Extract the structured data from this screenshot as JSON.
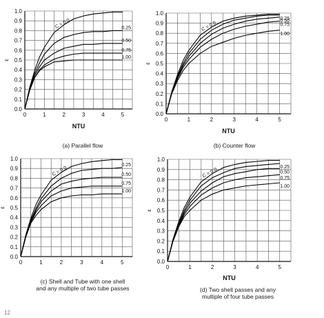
{
  "figure": {
    "footer_mark": "12"
  },
  "chart_data": [
    {
      "type": "line",
      "panel": "a",
      "title": "(a) Parallel flow",
      "xlabel": "NTU",
      "ylabel": "ε",
      "xlim": [
        0,
        5.5
      ],
      "ylim": [
        0,
        1.0
      ],
      "xticks": [
        0,
        1,
        2,
        3,
        4,
        5
      ],
      "yticks": [
        0.0,
        0.1,
        0.2,
        0.3,
        0.4,
        0.5,
        0.6,
        0.7,
        0.8,
        0.9,
        1.0
      ],
      "grid": true,
      "x": [
        0,
        0.25,
        0.5,
        0.75,
        1.0,
        1.5,
        2.0,
        2.5,
        3.0,
        3.5,
        4.0,
        4.5,
        5.0
      ],
      "series": [
        {
          "name": "C = 0.0",
          "values": [
            0,
            0.22,
            0.39,
            0.53,
            0.63,
            0.78,
            0.86,
            0.92,
            0.95,
            0.97,
            0.98,
            0.99,
            0.99
          ]
        },
        {
          "name": "0.25",
          "values": [
            0,
            0.21,
            0.36,
            0.47,
            0.56,
            0.67,
            0.73,
            0.76,
            0.78,
            0.79,
            0.79,
            0.8,
            0.8
          ]
        },
        {
          "name": "0.50",
          "values": [
            0,
            0.2,
            0.34,
            0.43,
            0.5,
            0.57,
            0.62,
            0.64,
            0.66,
            0.66,
            0.67,
            0.67,
            0.67
          ]
        },
        {
          "name": "0.75",
          "values": [
            0,
            0.19,
            0.32,
            0.4,
            0.45,
            0.51,
            0.54,
            0.56,
            0.57,
            0.57,
            0.57,
            0.57,
            0.57
          ]
        },
        {
          "name": "1.00",
          "values": [
            0,
            0.2,
            0.32,
            0.39,
            0.43,
            0.48,
            0.49,
            0.5,
            0.5,
            0.5,
            0.5,
            0.5,
            0.5
          ]
        }
      ]
    },
    {
      "type": "line",
      "panel": "b",
      "title": "(b) Counter flow",
      "xlabel": "NTU",
      "ylabel": "ε",
      "xlim": [
        0,
        5.5
      ],
      "ylim": [
        0,
        1.0
      ],
      "xticks": [
        0,
        1,
        2,
        3,
        4,
        5
      ],
      "yticks": [
        0.0,
        0.1,
        0.2,
        0.3,
        0.4,
        0.5,
        0.6,
        0.7,
        0.8,
        0.9,
        1.0
      ],
      "grid": true,
      "x": [
        0,
        0.25,
        0.5,
        0.75,
        1.0,
        1.5,
        2.0,
        2.5,
        3.0,
        3.5,
        4.0,
        4.5,
        5.0
      ],
      "series": [
        {
          "name": "C = 0.0",
          "values": [
            0,
            0.22,
            0.39,
            0.53,
            0.63,
            0.78,
            0.86,
            0.92,
            0.95,
            0.97,
            0.98,
            0.99,
            0.99
          ]
        },
        {
          "name": "0.25",
          "values": [
            0,
            0.21,
            0.37,
            0.5,
            0.6,
            0.74,
            0.83,
            0.89,
            0.93,
            0.95,
            0.97,
            0.98,
            0.98
          ]
        },
        {
          "name": "0.50",
          "values": [
            0,
            0.21,
            0.36,
            0.48,
            0.57,
            0.7,
            0.79,
            0.85,
            0.89,
            0.92,
            0.94,
            0.95,
            0.96
          ]
        },
        {
          "name": "0.75",
          "values": [
            0,
            0.21,
            0.35,
            0.46,
            0.54,
            0.66,
            0.74,
            0.8,
            0.84,
            0.87,
            0.89,
            0.91,
            0.92
          ]
        },
        {
          "name": "1.00",
          "values": [
            0,
            0.2,
            0.33,
            0.43,
            0.5,
            0.6,
            0.67,
            0.71,
            0.75,
            0.78,
            0.8,
            0.82,
            0.83
          ]
        }
      ]
    },
    {
      "type": "line",
      "panel": "c",
      "title": "(c) Shell and Tube with one shell\nand any multiple of two tube passes",
      "xlabel": "",
      "ylabel": "ε",
      "xlim": [
        0,
        5.5
      ],
      "ylim": [
        0,
        1.0
      ],
      "xticks": [
        0,
        1,
        2,
        3,
        4,
        5
      ],
      "yticks": [
        0.0,
        0.1,
        0.2,
        0.3,
        0.4,
        0.5,
        0.6,
        0.7,
        0.8,
        0.9,
        1.0
      ],
      "grid": true,
      "x": [
        0,
        0.25,
        0.5,
        0.75,
        1.0,
        1.5,
        2.0,
        2.5,
        3.0,
        3.5,
        4.0,
        4.5,
        5.0
      ],
      "series": [
        {
          "name": "C = 0.0",
          "values": [
            0,
            0.22,
            0.39,
            0.53,
            0.63,
            0.78,
            0.86,
            0.92,
            0.95,
            0.97,
            0.98,
            0.99,
            0.99
          ]
        },
        {
          "name": "0.25",
          "values": [
            0,
            0.21,
            0.37,
            0.49,
            0.59,
            0.72,
            0.8,
            0.85,
            0.88,
            0.89,
            0.9,
            0.9,
            0.91
          ]
        },
        {
          "name": "0.50",
          "values": [
            0,
            0.21,
            0.36,
            0.47,
            0.56,
            0.67,
            0.74,
            0.77,
            0.79,
            0.8,
            0.81,
            0.81,
            0.81
          ]
        },
        {
          "name": "0.75",
          "values": [
            0,
            0.2,
            0.35,
            0.45,
            0.52,
            0.62,
            0.67,
            0.7,
            0.71,
            0.72,
            0.72,
            0.72,
            0.72
          ]
        },
        {
          "name": "1.00",
          "values": [
            0,
            0.2,
            0.34,
            0.42,
            0.48,
            0.56,
            0.6,
            0.62,
            0.63,
            0.63,
            0.64,
            0.64,
            0.64
          ]
        }
      ]
    },
    {
      "type": "line",
      "panel": "d",
      "title": "(d) Two shell passes and any\nmultiple of four tube passes",
      "xlabel": "NTU",
      "ylabel": "ε",
      "xlim": [
        0,
        5.5
      ],
      "ylim": [
        0,
        1.0
      ],
      "xticks": [
        0,
        1,
        2,
        3,
        4,
        5
      ],
      "yticks": [
        0.0,
        0.1,
        0.2,
        0.3,
        0.4,
        0.5,
        0.6,
        0.7,
        0.8,
        0.9,
        1.0
      ],
      "grid": true,
      "x": [
        0,
        0.25,
        0.5,
        0.75,
        1.0,
        1.5,
        2.0,
        2.5,
        3.0,
        3.5,
        4.0,
        4.5,
        5.0
      ],
      "series": [
        {
          "name": "C = 0.0",
          "values": [
            0,
            0.22,
            0.39,
            0.53,
            0.63,
            0.78,
            0.86,
            0.92,
            0.95,
            0.97,
            0.98,
            0.99,
            0.99
          ]
        },
        {
          "name": "0.25",
          "values": [
            0,
            0.21,
            0.37,
            0.5,
            0.6,
            0.74,
            0.82,
            0.87,
            0.91,
            0.93,
            0.94,
            0.95,
            0.96
          ]
        },
        {
          "name": "0.50",
          "values": [
            0,
            0.21,
            0.36,
            0.48,
            0.57,
            0.69,
            0.77,
            0.83,
            0.86,
            0.88,
            0.9,
            0.91,
            0.91
          ]
        },
        {
          "name": "0.75",
          "values": [
            0,
            0.21,
            0.35,
            0.46,
            0.54,
            0.65,
            0.72,
            0.77,
            0.8,
            0.82,
            0.83,
            0.84,
            0.85
          ]
        },
        {
          "name": "1.00",
          "values": [
            0,
            0.2,
            0.34,
            0.44,
            0.5,
            0.6,
            0.66,
            0.7,
            0.72,
            0.74,
            0.75,
            0.76,
            0.77
          ]
        }
      ]
    }
  ]
}
